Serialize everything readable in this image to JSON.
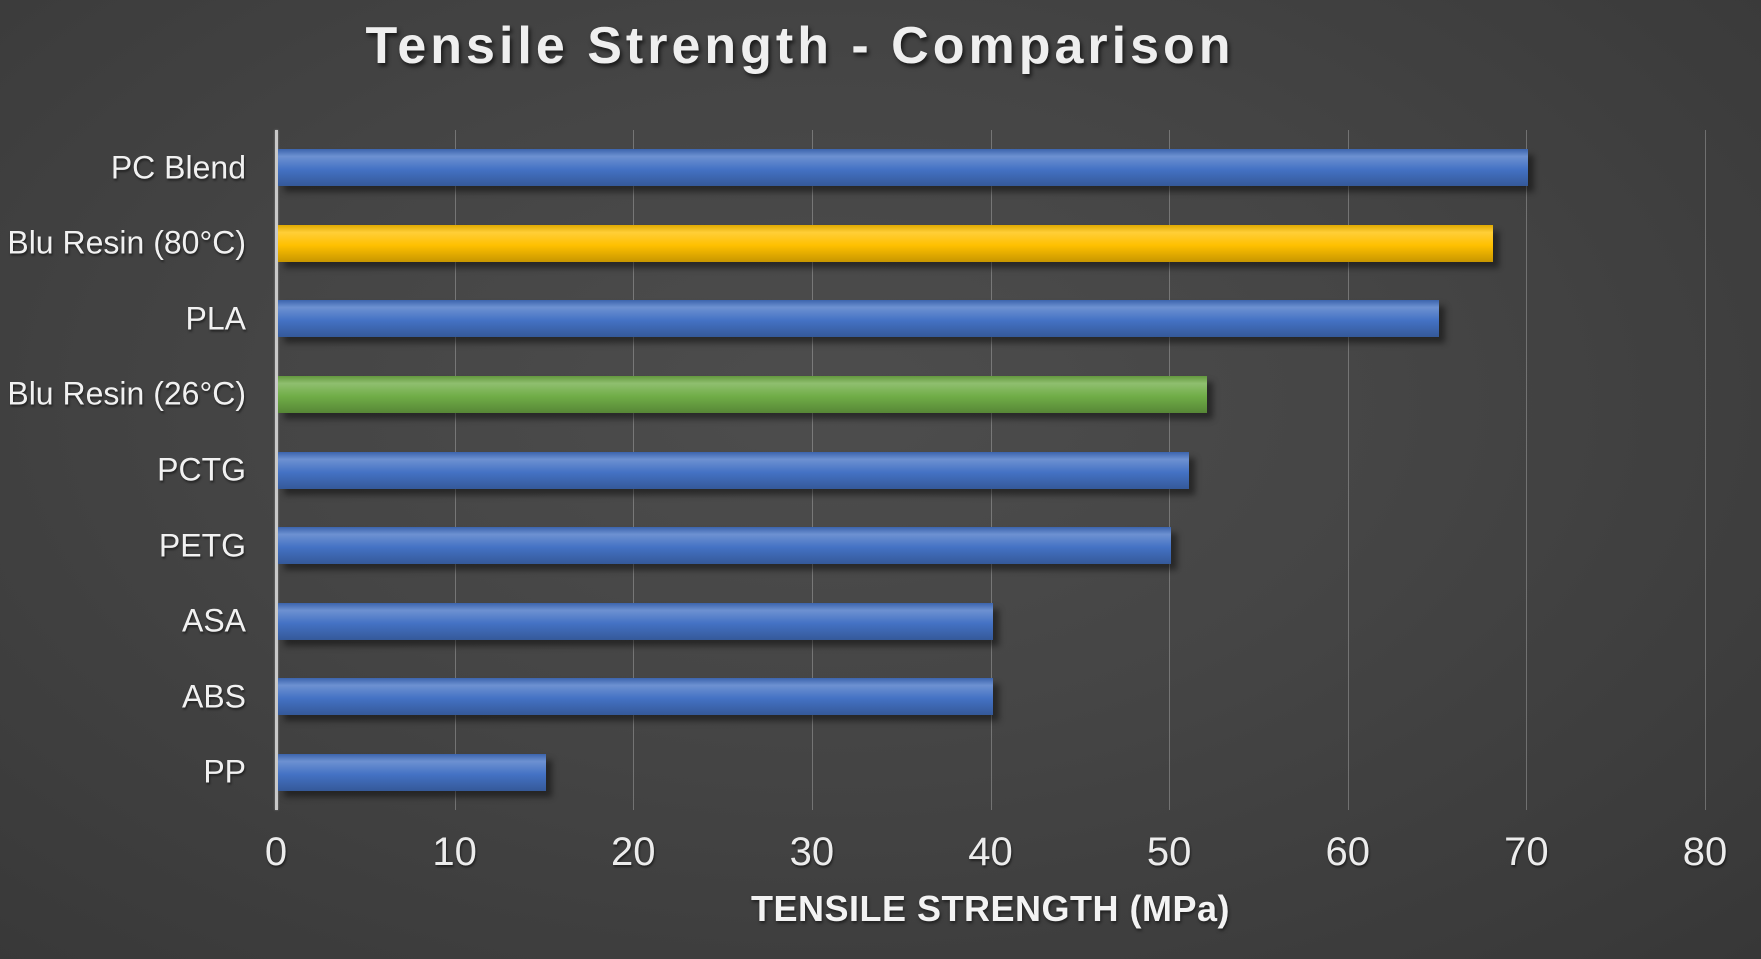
{
  "title": "Tensile Strength - Comparison",
  "chart_data": {
    "type": "bar",
    "orientation": "horizontal",
    "title": "Tensile Strength - Comparison",
    "xlabel": "TENSILE STRENGTH (MPa)",
    "ylabel": "",
    "categories": [
      "PC Blend",
      "Blu Resin (80°C)",
      "PLA",
      "Blu Resin (26°C)",
      "PCTG",
      "PETG",
      "ASA",
      "ABS",
      "PP"
    ],
    "values": [
      70,
      68,
      65,
      52,
      51,
      50,
      40,
      40,
      15
    ],
    "bar_colors": [
      "#4472c4",
      "#ffc000",
      "#4472c4",
      "#70ad47",
      "#4472c4",
      "#4472c4",
      "#4472c4",
      "#4472c4",
      "#4472c4"
    ],
    "xlim": [
      0,
      80
    ],
    "xticks": [
      0,
      10,
      20,
      30,
      40,
      50,
      60,
      70,
      80
    ],
    "grid": true,
    "legend": false
  },
  "colors": {
    "background_center": "#4d4d4d",
    "background_edge": "#282828",
    "bar_blue": "#4472c4",
    "bar_yellow": "#ffc000",
    "bar_green": "#70ad47",
    "text": "#f1f1f1",
    "gridline": "rgba(255,255,255,0.26)",
    "axis_line": "#c9c9c9"
  }
}
